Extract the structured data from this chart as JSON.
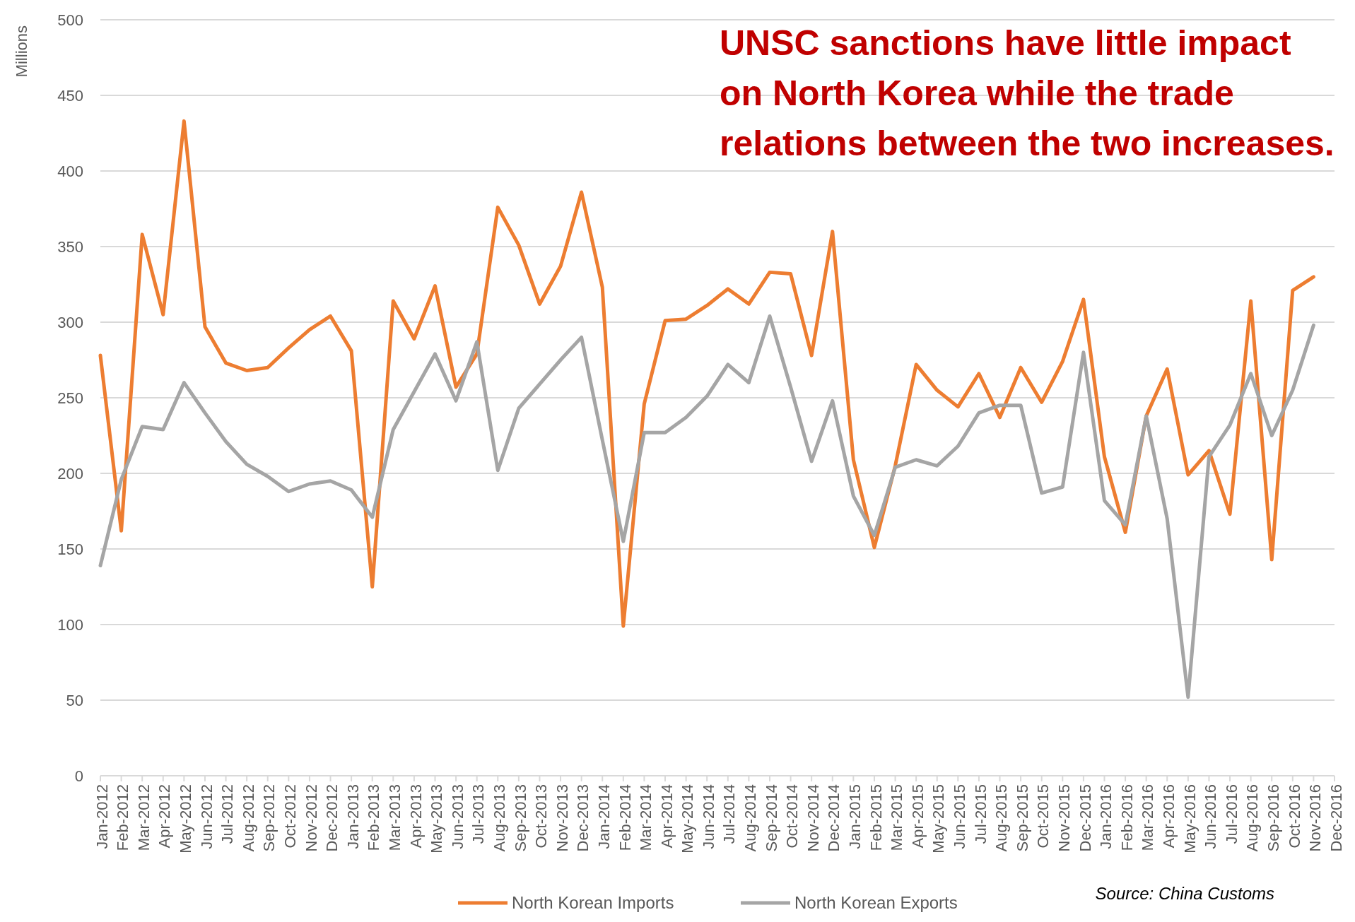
{
  "chart_data": {
    "type": "line",
    "ylabel": "Millions",
    "annotations": [
      "UNSC sanctions have little impact on North Korea while the trade relations between the two increases.",
      "Source: China Customs"
    ],
    "categories": [
      "Jan-2012",
      "Feb-2012",
      "Mar-2012",
      "Apr-2012",
      "May-2012",
      "Jun-2012",
      "Jul-2012",
      "Aug-2012",
      "Sep-2012",
      "Oct-2012",
      "Nov-2012",
      "Dec-2012",
      "Jan-2013",
      "Feb-2013",
      "Mar-2013",
      "Apr-2013",
      "May-2013",
      "Jun-2013",
      "Jul-2013",
      "Aug-2013",
      "Sep-2013",
      "Oct-2013",
      "Nov-2013",
      "Dec-2013",
      "Jan-2014",
      "Feb-2014",
      "Mar-2014",
      "Apr-2014",
      "May-2014",
      "Jun-2014",
      "Jul-2014",
      "Aug-2014",
      "Sep-2014",
      "Oct-2014",
      "Nov-2014",
      "Dec-2014",
      "Jan-2015",
      "Feb-2015",
      "Mar-2015",
      "Apr-2015",
      "May-2015",
      "Jun-2015",
      "Jul-2015",
      "Aug-2015",
      "Sep-2015",
      "Oct-2015",
      "Nov-2015",
      "Dec-2015",
      "Jan-2016",
      "Feb-2016",
      "Mar-2016",
      "Apr-2016",
      "May-2016",
      "Jun-2016",
      "Jul-2016",
      "Aug-2016",
      "Sep-2016",
      "Oct-2016",
      "Nov-2016",
      "Dec-2016"
    ],
    "series": [
      {
        "name": "North Korean Imports",
        "color": "#ed7d31",
        "values": [
          278,
          162,
          358,
          305,
          433,
          297,
          273,
          268,
          270,
          283,
          295,
          304,
          281,
          125,
          314,
          289,
          324,
          257,
          279,
          376,
          351,
          312,
          337,
          386,
          323,
          99,
          246,
          301,
          302,
          311,
          322,
          312,
          333,
          332,
          278,
          360,
          209,
          151,
          205,
          272,
          255,
          244,
          266,
          237,
          270,
          247,
          274,
          315,
          211,
          161,
          238,
          269,
          199,
          215,
          173,
          314,
          143,
          321,
          330,
          null
        ]
      },
      {
        "name": "North Korean Exports",
        "color": "#a5a5a5",
        "values": [
          139,
          196,
          231,
          229,
          260,
          240,
          221,
          206,
          198,
          188,
          193,
          195,
          189,
          171,
          229,
          254,
          279,
          248,
          287,
          202,
          243,
          259,
          275,
          290,
          222,
          155,
          227,
          227,
          237,
          251,
          272,
          260,
          304,
          257,
          208,
          248,
          185,
          159,
          204,
          209,
          205,
          218,
          240,
          245,
          245,
          187,
          191,
          280,
          182,
          166,
          238,
          170,
          52,
          211,
          232,
          266,
          225,
          255,
          298,
          null
        ]
      }
    ],
    "ylim": [
      0,
      500
    ],
    "yticks": [
      0,
      50,
      100,
      150,
      200,
      250,
      300,
      350,
      400,
      450,
      500
    ],
    "grid": "y",
    "legend": "bottom",
    "marker": "none",
    "line_style": "solid"
  }
}
